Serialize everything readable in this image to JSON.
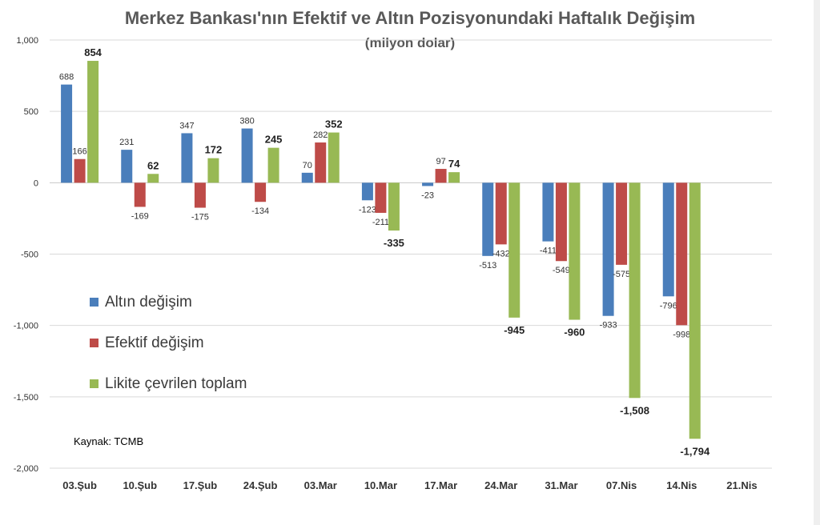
{
  "chart_data": {
    "type": "bar",
    "title": "Merkez Bankası'nın Efektif ve Altın Pozisyonundaki Haftalık Değişim",
    "subtitle": "(milyon dolar)",
    "xlabel": "",
    "ylabel": "",
    "ylim": [
      -2000,
      1000
    ],
    "yticks": [
      -2000,
      -1500,
      -1000,
      -500,
      0,
      500,
      1000
    ],
    "ytick_labels": [
      "-2,000",
      "-1,500",
      "-1,000",
      "-500",
      "0",
      "500",
      "1,000"
    ],
    "grid": true,
    "legend_position": "left-middle",
    "categories": [
      "03.Şub",
      "10.Şub",
      "17.Şub",
      "24.Şub",
      "03.Mar",
      "10.Mar",
      "17.Mar",
      "24.Mar",
      "31.Mar",
      "07.Nis",
      "14.Nis",
      "21.Nis"
    ],
    "series": [
      {
        "name": "Altın değişim",
        "color": "#4a7ebb",
        "values": [
          688,
          231,
          347,
          380,
          70,
          -123,
          -23,
          -513,
          -411,
          -933,
          -796,
          null
        ],
        "labels": [
          "688",
          "231",
          "347",
          "380",
          "70",
          "-123",
          "-23",
          "-513",
          "-411",
          "-933",
          "-796",
          ""
        ]
      },
      {
        "name": "Efektif değişim",
        "color": "#be4b48",
        "values": [
          166,
          -169,
          -175,
          -134,
          282,
          -211,
          97,
          -432,
          -549,
          -575,
          -998,
          null
        ],
        "labels": [
          "166",
          "-169",
          "-175",
          "-134",
          "282",
          "-211",
          "97",
          "-432",
          "-549",
          "-575",
          "-998",
          ""
        ]
      },
      {
        "name": "Likite çevrilen toplam",
        "color": "#98b954",
        "values": [
          854,
          62,
          172,
          245,
          352,
          -335,
          74,
          -945,
          -960,
          -1508,
          -1794,
          null
        ],
        "labels": [
          "854",
          "62",
          "172",
          "245",
          "352",
          "-335",
          "74",
          "-945",
          "-960",
          "-1,508",
          "-1,794",
          ""
        ]
      }
    ],
    "source": "Kaynak: TCMB"
  }
}
